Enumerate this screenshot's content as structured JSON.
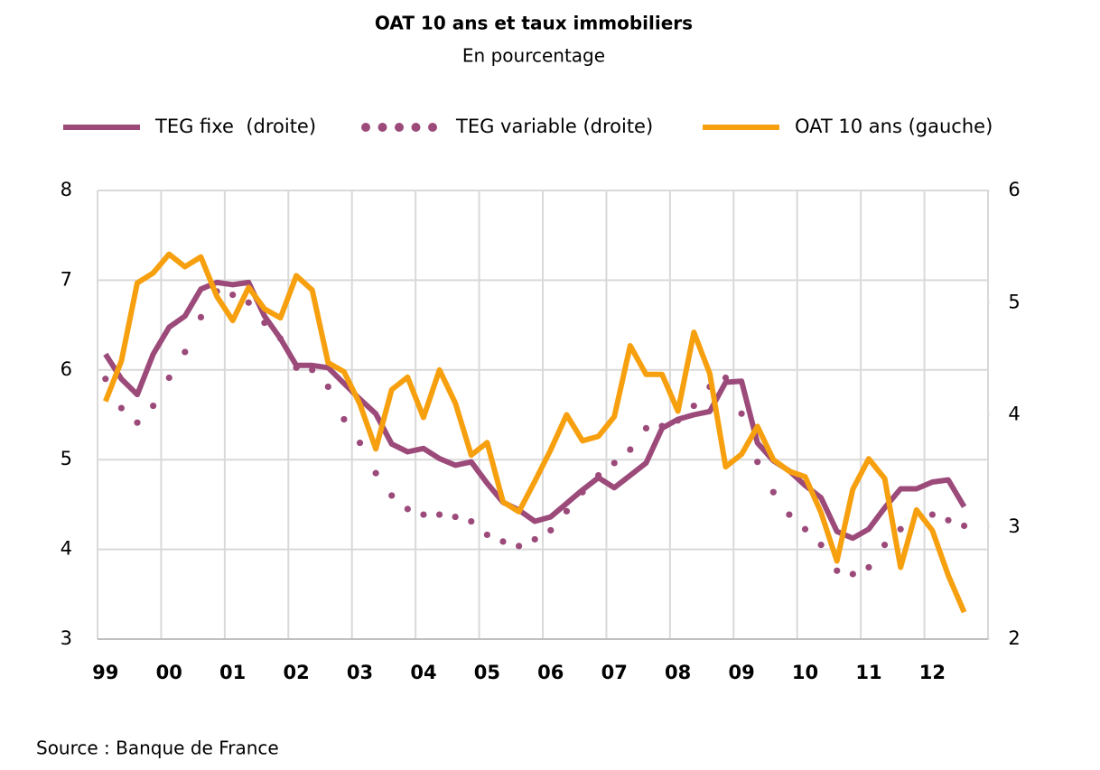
{
  "chart_data": {
    "type": "line",
    "title": "OAT 10 ans et taux immobiliers",
    "subtitle": "En pourcentage",
    "source": "Source : Banque de France",
    "categories": [
      "99",
      null,
      null,
      null,
      "00",
      null,
      null,
      null,
      "01",
      null,
      null,
      null,
      "02",
      null,
      null,
      null,
      "03",
      null,
      null,
      null,
      "04",
      null,
      null,
      null,
      "05",
      null,
      null,
      null,
      "06",
      null,
      null,
      null,
      "07",
      null,
      null,
      null,
      "08",
      null,
      null,
      null,
      "09",
      null,
      null,
      null,
      "10",
      null,
      null,
      null,
      "11",
      null,
      null,
      null,
      "12",
      null,
      null
    ],
    "ylim": [
      3,
      8
    ],
    "yticks": [
      3,
      4,
      5,
      6,
      7,
      8
    ],
    "y2lim": [
      2,
      6
    ],
    "y2ticks": [
      2,
      3,
      4,
      5,
      6
    ],
    "grid": true,
    "series": [
      {
        "name": "TEG fixe  (droite)",
        "color": "#9b4a7a",
        "axis": "y2",
        "style": "solid",
        "values": [
          4.54,
          4.32,
          4.18,
          4.54,
          4.78,
          4.88,
          5.12,
          5.18,
          5.16,
          5.18,
          4.88,
          4.68,
          4.44,
          4.44,
          4.42,
          4.28,
          4.14,
          4.01,
          3.74,
          3.67,
          3.7,
          3.61,
          3.55,
          3.58,
          3.39,
          3.22,
          3.15,
          3.05,
          3.09,
          3.21,
          3.33,
          3.44,
          3.35,
          3.46,
          3.57,
          3.88,
          3.96,
          4.0,
          4.03,
          4.29,
          4.3,
          3.75,
          3.59,
          3.5,
          3.37,
          3.26,
          2.96,
          2.9,
          2.98,
          3.17,
          3.34,
          3.34,
          3.4,
          3.42,
          3.18
        ]
      },
      {
        "name": "TEG variable (droite)",
        "color": "#9b4a7a",
        "axis": "y2",
        "style": "dotted",
        "values": [
          4.32,
          4.06,
          3.93,
          4.08,
          4.33,
          4.56,
          4.87,
          5.1,
          5.07,
          5.0,
          4.82,
          4.68,
          4.42,
          4.4,
          4.25,
          3.96,
          3.75,
          3.48,
          3.28,
          3.16,
          3.11,
          3.11,
          3.09,
          3.05,
          2.93,
          2.87,
          2.83,
          2.89,
          2.97,
          3.14,
          3.31,
          3.46,
          3.57,
          3.69,
          3.88,
          3.9,
          3.95,
          4.08,
          4.25,
          4.33,
          4.01,
          3.58,
          3.31,
          3.11,
          2.98,
          2.84,
          2.61,
          2.58,
          2.64,
          2.84,
          2.98,
          3.13,
          3.11,
          3.06,
          3.01
        ]
      },
      {
        "name": "OAT 10 ans (gauche)",
        "color": "#f7a00f",
        "axis": "y",
        "style": "solid",
        "values": [
          5.65,
          6.1,
          6.97,
          7.08,
          7.29,
          7.15,
          7.26,
          6.82,
          6.55,
          6.92,
          6.68,
          6.58,
          7.05,
          6.89,
          6.08,
          5.98,
          5.62,
          5.12,
          5.78,
          5.92,
          5.47,
          6.0,
          5.63,
          5.05,
          5.19,
          4.53,
          4.42,
          4.76,
          5.11,
          5.5,
          5.21,
          5.26,
          5.48,
          6.27,
          5.95,
          5.95,
          5.54,
          6.42,
          5.96,
          4.92,
          5.06,
          5.37,
          5.0,
          4.87,
          4.81,
          4.41,
          3.87,
          4.67,
          5.01,
          4.79,
          3.8,
          4.44,
          4.21,
          3.71,
          3.3
        ]
      }
    ]
  }
}
